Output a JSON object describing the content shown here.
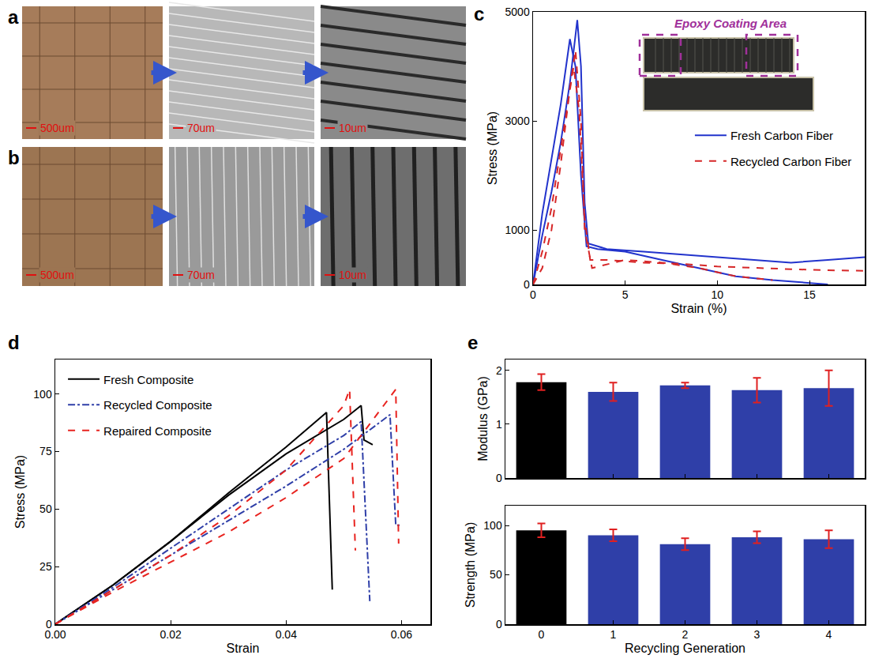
{
  "images": [
    {
      "panel": "a",
      "scale_bars": [
        "500um",
        "70um",
        "10um"
      ]
    },
    {
      "panel": "b",
      "scale_bars": [
        "500um",
        "70um",
        "10um"
      ]
    }
  ],
  "chart_data": [
    {
      "panel": "c",
      "type": "line",
      "x_label": "Strain (%)",
      "y_label": "Stress (MPa)",
      "xlim": [
        0,
        18
      ],
      "xticks": [
        0,
        5,
        10,
        15
      ],
      "ylim": [
        0,
        5000
      ],
      "yticks": [
        0,
        1000,
        3000,
        5000
      ],
      "legend": "center right",
      "annotations": [
        "Epoxy Coating Area"
      ],
      "series": [
        {
          "name": "Fresh Carbon Fiber",
          "color": "#2233cc",
          "line_style": "solid",
          "x": [
            0,
            0.5,
            1.0,
            1.5,
            2.0,
            2.3,
            2.6,
            2.9,
            3.5,
            5,
            7,
            9,
            11,
            13,
            15,
            16
          ],
          "values": [
            0,
            1300,
            2300,
            3300,
            4500,
            4000,
            2000,
            700,
            650,
            600,
            450,
            300,
            150,
            80,
            30,
            0
          ]
        },
        {
          "name": "Fresh Carbon Fiber",
          "color": "#2233cc",
          "line_style": "solid",
          "x": [
            0,
            0.5,
            1,
            1.5,
            2.0,
            2.4,
            2.6,
            2.8,
            3.0,
            4,
            6,
            8,
            10,
            12,
            14,
            16,
            18
          ],
          "values": [
            0,
            900,
            1700,
            2600,
            3700,
            4850,
            4000,
            1500,
            750,
            650,
            600,
            550,
            500,
            450,
            400,
            450,
            500
          ]
        },
        {
          "name": "Recycled Carbon Fiber",
          "color": "#d62728",
          "line_style": "dash",
          "x": [
            0,
            0.5,
            1,
            1.5,
            2.0,
            2.3,
            2.6,
            2.8,
            3.2,
            5,
            7,
            9,
            11,
            13
          ],
          "values": [
            0,
            300,
            1000,
            2200,
            3600,
            4300,
            3000,
            1000,
            300,
            450,
            400,
            300,
            150,
            80
          ]
        },
        {
          "name": "Recycled Carbon Fiber",
          "color": "#d62728",
          "line_style": "dash",
          "x": [
            0,
            0.5,
            1,
            1.5,
            2.0,
            2.2,
            2.5,
            2.8,
            3.1,
            4,
            6,
            8,
            10,
            12,
            14,
            16,
            18
          ],
          "values": [
            0,
            600,
            1400,
            2500,
            3600,
            4000,
            3200,
            1200,
            450,
            450,
            400,
            380,
            330,
            300,
            280,
            260,
            250
          ]
        }
      ]
    },
    {
      "panel": "d",
      "type": "line",
      "x_label": "Strain",
      "y_label": "Stress (MPa)",
      "xlim": [
        0,
        0.065
      ],
      "xticks": [
        {
          "value": 0,
          "label": "0.00"
        },
        0.02,
        0.04,
        0.06
      ],
      "ylim": [
        0,
        115
      ],
      "yticks": [
        0,
        25,
        50,
        75,
        100
      ],
      "legend": "upper left",
      "series": [
        {
          "name": "Fresh Composite",
          "color": "#000000",
          "line_style": "solid",
          "x": [
            0,
            0.01,
            0.02,
            0.03,
            0.04,
            0.047,
            0.048
          ],
          "values": [
            0,
            17,
            36,
            57,
            77,
            92,
            15
          ]
        },
        {
          "name": "Fresh Composite",
          "color": "#000000",
          "line_style": "solid",
          "x": [
            0,
            0.01,
            0.02,
            0.03,
            0.04,
            0.05,
            0.053,
            0.0535,
            0.055
          ],
          "values": [
            0,
            17,
            36,
            56,
            74,
            89,
            95,
            80,
            78
          ]
        },
        {
          "name": "Recycled Composite",
          "color": "#2f3fa8",
          "line_style": "dashdot",
          "x": [
            0,
            0.01,
            0.02,
            0.03,
            0.04,
            0.05,
            0.053,
            0.0545
          ],
          "values": [
            0,
            16,
            33,
            50,
            67,
            82,
            88,
            10
          ]
        },
        {
          "name": "Recycled Composite",
          "color": "#2f3fa8",
          "line_style": "dashdot",
          "x": [
            0,
            0.01,
            0.02,
            0.03,
            0.04,
            0.05,
            0.058,
            0.059,
            0.06
          ],
          "values": [
            0,
            15,
            30,
            45,
            60,
            76,
            91,
            43,
            43
          ]
        },
        {
          "name": "Repaired Composite",
          "color": "#e8231f",
          "line_style": "dash",
          "x": [
            0,
            0.01,
            0.02,
            0.03,
            0.04,
            0.05,
            0.051,
            0.052
          ],
          "values": [
            0,
            15,
            30,
            47,
            67,
            95,
            102,
            32
          ]
        },
        {
          "name": "Repaired Composite",
          "color": "#e8231f",
          "line_style": "dash",
          "x": [
            0,
            0.01,
            0.02,
            0.03,
            0.04,
            0.05,
            0.059,
            0.0595
          ],
          "values": [
            0,
            14,
            27,
            40,
            55,
            72,
            102,
            35
          ]
        }
      ]
    },
    {
      "panel": "e",
      "type": "bar",
      "y_label": "Modulus (GPa)",
      "categories": [
        "0",
        "1",
        "2",
        "3",
        "4"
      ],
      "values": [
        1.78,
        1.6,
        1.72,
        1.63,
        1.67
      ],
      "errors": [
        0.15,
        0.17,
        0.05,
        0.23,
        0.33
      ],
      "colors": [
        "#000000",
        "#2f3fa8",
        "#2f3fa8",
        "#2f3fa8",
        "#2f3fa8"
      ],
      "ylim": [
        0,
        2.2
      ],
      "yticks": [
        0,
        1,
        2
      ],
      "tick_labels": "y"
    },
    {
      "type": "bar",
      "x_label": "Recycling Generation",
      "y_label": "Strength (MPa)",
      "categories": [
        "0",
        "1",
        "2",
        "3",
        "4"
      ],
      "values": [
        95,
        90,
        81,
        88,
        86
      ],
      "errors": [
        7,
        6,
        6,
        6,
        9
      ],
      "colors": [
        "#000000",
        "#2f3fa8",
        "#2f3fa8",
        "#2f3fa8",
        "#2f3fa8"
      ],
      "ylim": [
        0,
        120
      ],
      "yticks": [
        0,
        50,
        100
      ]
    }
  ]
}
